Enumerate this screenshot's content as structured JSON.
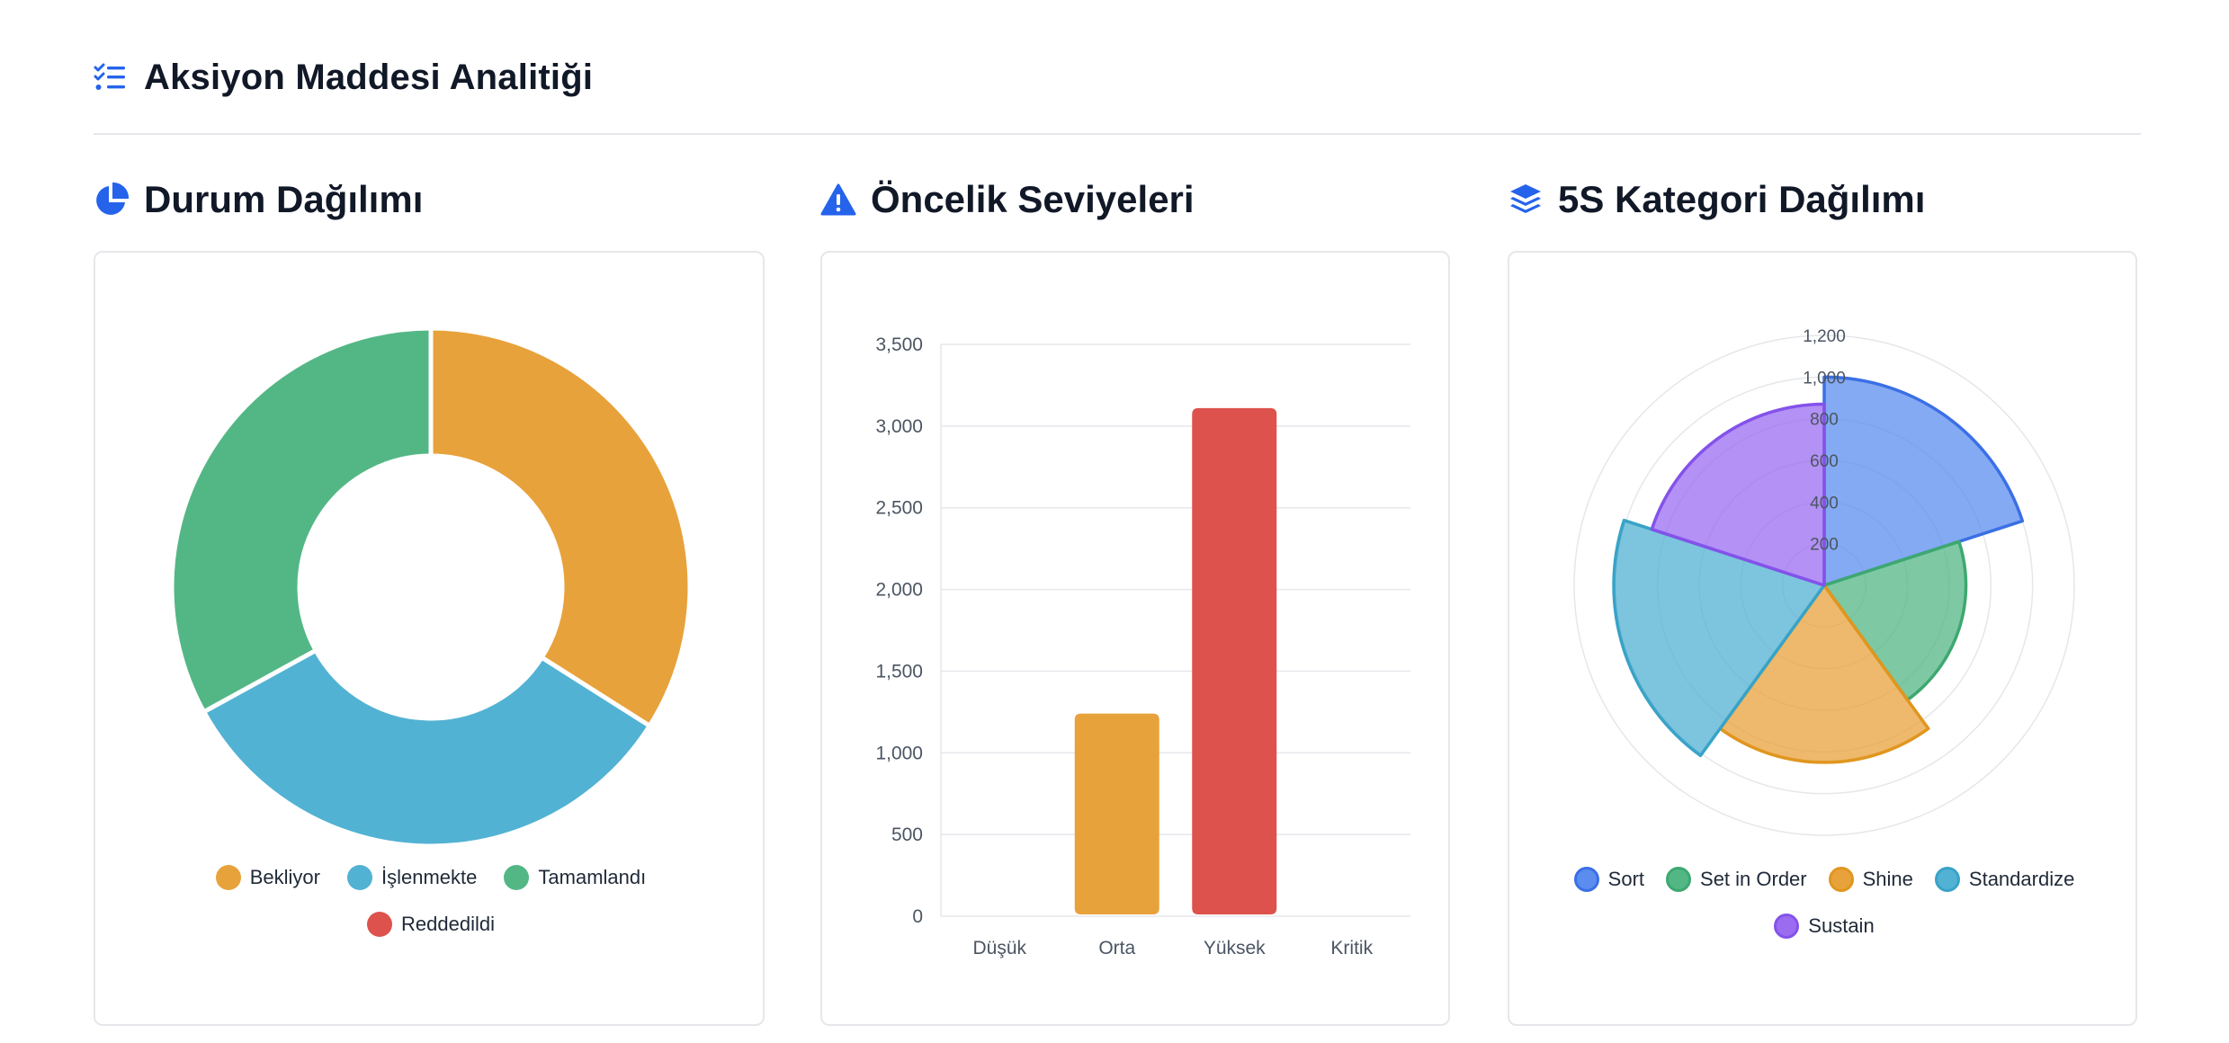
{
  "page": {
    "title": "Aksiyon Maddesi Analitiği",
    "title_icon": "tasks-list-icon",
    "accent_color": "#2563eb"
  },
  "sections": {
    "status": {
      "title": "Durum Dağılımı",
      "icon": "pie-chart-icon"
    },
    "priority": {
      "title": "Öncelik Seviyeleri",
      "icon": "warning-triangle-icon"
    },
    "category": {
      "title": "5S Kategori Dağılımı",
      "icon": "layers-icon"
    }
  },
  "chart_data": [
    {
      "type": "pie",
      "variant": "doughnut",
      "categories": [
        "Bekliyor",
        "İşlenmekte",
        "Tamamlandı",
        "Reddedildi"
      ],
      "values": [
        34,
        33,
        33,
        0
      ],
      "colors": [
        "#e8a23b",
        "#52b2d3",
        "#53b785",
        "#dd524c"
      ],
      "legend_position": "bottom"
    },
    {
      "type": "bar",
      "categories": [
        "Düşük",
        "Orta",
        "Yüksek",
        "Kritik"
      ],
      "values": [
        0,
        1240,
        3110,
        0
      ],
      "colors": [
        "#53b785",
        "#e8a23b",
        "#dd524c",
        "#7c3aed"
      ],
      "ylim": [
        0,
        3500
      ],
      "yticks": [
        0,
        500,
        1000,
        1500,
        2000,
        2500,
        3000,
        3500
      ],
      "ytick_labels": [
        "0",
        "500",
        "1,000",
        "1,500",
        "2,000",
        "2,500",
        "3,000",
        "3,500"
      ],
      "grid": true,
      "legend": false
    },
    {
      "type": "polarArea",
      "categories": [
        "Sort",
        "Set in Order",
        "Shine",
        "Standardize",
        "Sustain"
      ],
      "values": [
        1000,
        680,
        850,
        1010,
        870
      ],
      "colors": [
        "#5b8def",
        "#53b785",
        "#e8a23b",
        "#52b2d3",
        "#9b6cf0"
      ],
      "border_colors": [
        "#3b6fe6",
        "#3da870",
        "#e0961f",
        "#38a3c7",
        "#8452ea"
      ],
      "rlim": [
        0,
        1200
      ],
      "rticks": [
        200,
        400,
        600,
        800,
        1000,
        1200
      ],
      "rtick_labels": [
        "200",
        "400",
        "600",
        "800",
        "1,000",
        "1,200"
      ],
      "legend_position": "bottom"
    }
  ]
}
